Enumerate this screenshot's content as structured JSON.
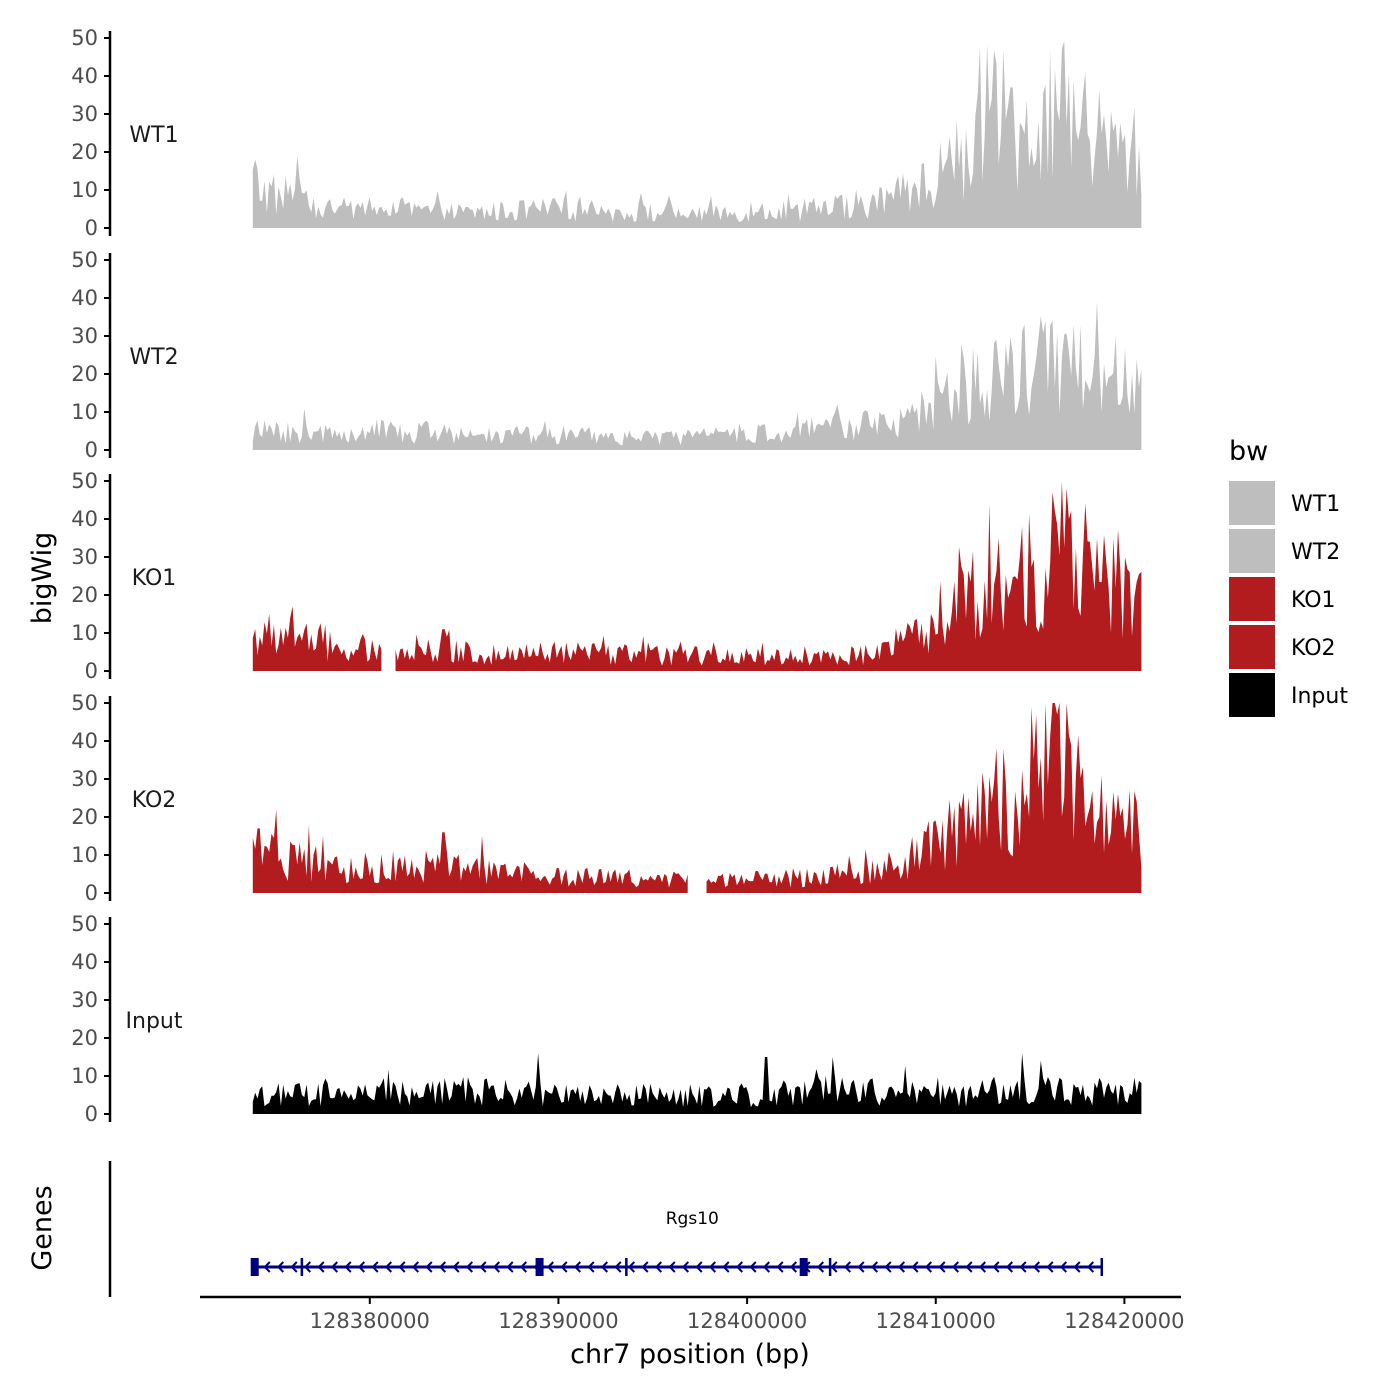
{
  "chart_data": {
    "type": "area",
    "title": "",
    "xlabel": "chr7 position (bp)",
    "ylabel_tracks": "bigWig",
    "ylabel_genes": "Genes",
    "xlim": [
      128371000,
      128423000
    ],
    "x_ticks": [
      128380000,
      128390000,
      128400000,
      128410000,
      128420000
    ],
    "x_tick_labels": [
      "128380000",
      "128390000",
      "128400000",
      "128410000",
      "128420000"
    ],
    "ylim": [
      0,
      50
    ],
    "y_ticks": [
      0,
      10,
      20,
      30,
      40,
      50
    ],
    "y_tick_labels": [
      "0",
      "10",
      "20",
      "30",
      "40",
      "50"
    ],
    "data_range": [
      128373800,
      128420900
    ],
    "colors": {
      "WT": "#bebebe",
      "KO": "#b21c1f",
      "Input": "#000000",
      "gene": "#000080"
    },
    "legend": {
      "title": "bw",
      "position": "right",
      "entries": [
        {
          "label": "WT1",
          "color": "#bebebe"
        },
        {
          "label": "WT2",
          "color": "#bebebe"
        },
        {
          "label": "KO1",
          "color": "#b21c1f"
        },
        {
          "label": "KO2",
          "color": "#b21c1f"
        },
        {
          "label": "Input",
          "color": "#000000"
        }
      ]
    },
    "series": [
      {
        "name": "WT1",
        "color": "#bebebe",
        "profile": [
          [
            128373800,
            12
          ],
          [
            128375000,
            8
          ],
          [
            128376000,
            10
          ],
          [
            128377000,
            5
          ],
          [
            128380000,
            5
          ],
          [
            128385000,
            4
          ],
          [
            128390000,
            5
          ],
          [
            128395000,
            4
          ],
          [
            128400000,
            4
          ],
          [
            128404000,
            5
          ],
          [
            128407000,
            7
          ],
          [
            128408800,
            10
          ],
          [
            128410000,
            14
          ],
          [
            128411500,
            20
          ],
          [
            128413000,
            26
          ],
          [
            128415000,
            28
          ],
          [
            128416500,
            32
          ],
          [
            128418000,
            25
          ],
          [
            128420000,
            20
          ],
          [
            128420900,
            20
          ]
        ],
        "peaks": [
          [
            128373900,
            18
          ],
          [
            128376200,
            19
          ],
          [
            128414100,
            37
          ],
          [
            128416700,
            47
          ],
          [
            128416300,
            42
          ],
          [
            128417800,
            35
          ]
        ],
        "gaps": []
      },
      {
        "name": "WT2",
        "color": "#bebebe",
        "profile": [
          [
            128373800,
            5
          ],
          [
            128377000,
            4
          ],
          [
            128380000,
            5
          ],
          [
            128385000,
            4
          ],
          [
            128390000,
            4
          ],
          [
            128395000,
            3
          ],
          [
            128400000,
            4
          ],
          [
            128403000,
            5
          ],
          [
            128405500,
            7
          ],
          [
            128407500,
            6
          ],
          [
            128409000,
            9
          ],
          [
            128411000,
            14
          ],
          [
            128413000,
            19
          ],
          [
            128415000,
            22
          ],
          [
            128417000,
            21
          ],
          [
            128419000,
            18
          ],
          [
            128420900,
            15
          ]
        ],
        "peaks": [
          [
            128376500,
            11
          ],
          [
            128404800,
            12
          ],
          [
            128412000,
            27
          ],
          [
            128415800,
            34
          ],
          [
            128416400,
            31
          ],
          [
            128419500,
            30
          ],
          [
            128420700,
            24
          ]
        ],
        "gaps": []
      },
      {
        "name": "KO1",
        "color": "#b21c1f",
        "profile": [
          [
            128373800,
            9
          ],
          [
            128376000,
            10
          ],
          [
            128377500,
            6
          ],
          [
            128380000,
            5
          ],
          [
            128383000,
            6
          ],
          [
            128387000,
            4
          ],
          [
            128390000,
            5
          ],
          [
            128395000,
            4
          ],
          [
            128400000,
            4
          ],
          [
            128403000,
            4
          ],
          [
            128406000,
            4
          ],
          [
            128408000,
            7
          ],
          [
            128409500,
            10
          ],
          [
            128411000,
            16
          ],
          [
            128413000,
            22
          ],
          [
            128415000,
            27
          ],
          [
            128416500,
            33
          ],
          [
            128418000,
            27
          ],
          [
            128420000,
            22
          ],
          [
            128420900,
            18
          ]
        ],
        "peaks": [
          [
            128375900,
            17
          ],
          [
            128383900,
            11
          ],
          [
            128414600,
            38
          ],
          [
            128416300,
            42
          ],
          [
            128417100,
            40
          ],
          [
            128419400,
            35
          ]
        ],
        "gaps": [
          [
            128380700,
            128381300
          ]
        ]
      },
      {
        "name": "KO2",
        "color": "#b21c1f",
        "profile": [
          [
            128373800,
            10
          ],
          [
            128376000,
            9
          ],
          [
            128378000,
            6
          ],
          [
            128380000,
            6
          ],
          [
            128383000,
            7
          ],
          [
            128386000,
            6
          ],
          [
            128390000,
            4
          ],
          [
            128395000,
            4
          ],
          [
            128397000,
            3
          ],
          [
            128399000,
            3
          ],
          [
            128402000,
            4
          ],
          [
            128405000,
            5
          ],
          [
            128408000,
            7
          ],
          [
            128410000,
            13
          ],
          [
            128412000,
            19
          ],
          [
            128414000,
            24
          ],
          [
            128415500,
            30
          ],
          [
            128416500,
            38
          ],
          [
            128417500,
            26
          ],
          [
            128419500,
            18
          ],
          [
            128420900,
            16
          ]
        ],
        "peaks": [
          [
            128374100,
            17
          ],
          [
            128383900,
            16
          ],
          [
            128385900,
            15
          ],
          [
            128415100,
            49
          ],
          [
            128415800,
            50
          ],
          [
            128416400,
            47
          ],
          [
            128418800,
            31
          ]
        ],
        "gaps": [
          [
            128396900,
            128397800
          ]
        ]
      },
      {
        "name": "Input",
        "color": "#000000",
        "profile": [
          [
            128373800,
            5
          ],
          [
            128380000,
            5
          ],
          [
            128385000,
            6
          ],
          [
            128390000,
            5
          ],
          [
            128395000,
            5
          ],
          [
            128400000,
            5
          ],
          [
            128405000,
            6
          ],
          [
            128410000,
            5
          ],
          [
            128415000,
            6
          ],
          [
            128420900,
            6
          ]
        ],
        "peaks": [
          [
            128388900,
            16
          ],
          [
            128401000,
            15
          ],
          [
            128404500,
            15
          ],
          [
            128414600,
            16
          ],
          [
            128415600,
            14
          ]
        ],
        "gaps": []
      }
    ],
    "gene": {
      "name": "Rgs10",
      "start": 128373800,
      "end": 128418800,
      "strand": "-",
      "exons": [
        128373900,
        128389000,
        128403000
      ],
      "tss_ticks": [
        128376400,
        128393600,
        128404400,
        128418800
      ]
    }
  }
}
